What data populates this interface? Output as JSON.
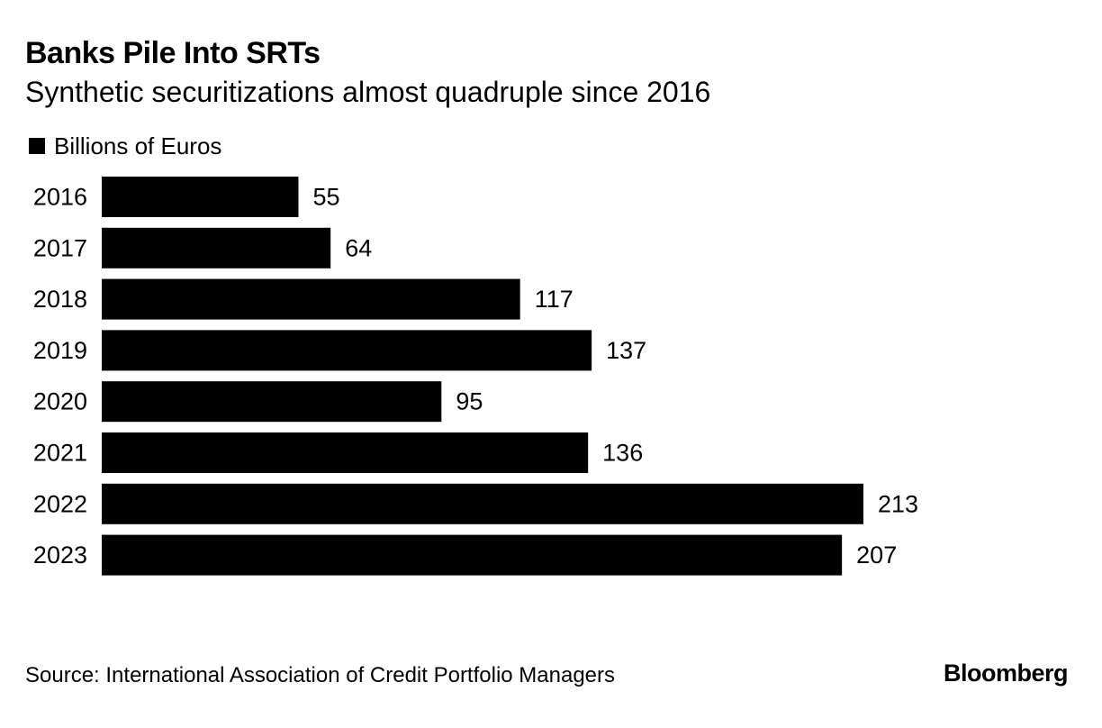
{
  "chart_data": {
    "type": "bar",
    "orientation": "horizontal",
    "title": "Banks Pile Into SRTs",
    "subtitle": "Synthetic securitizations almost quadruple since 2016",
    "legend": [
      "Billions of Euros"
    ],
    "categories": [
      "2016",
      "2017",
      "2018",
      "2019",
      "2020",
      "2021",
      "2022",
      "2023"
    ],
    "series": [
      {
        "name": "Billions of Euros",
        "values": [
          55,
          64,
          117,
          137,
          95,
          136,
          213,
          207
        ],
        "color": "#000000"
      }
    ],
    "xlim": [
      0,
      213
    ],
    "source": "Source: International Association of Credit Portfolio Managers"
  },
  "branding": {
    "logo_text": "Bloomberg"
  },
  "colors": {
    "bar": "#000000",
    "text": "#000000",
    "background": "#ffffff"
  }
}
